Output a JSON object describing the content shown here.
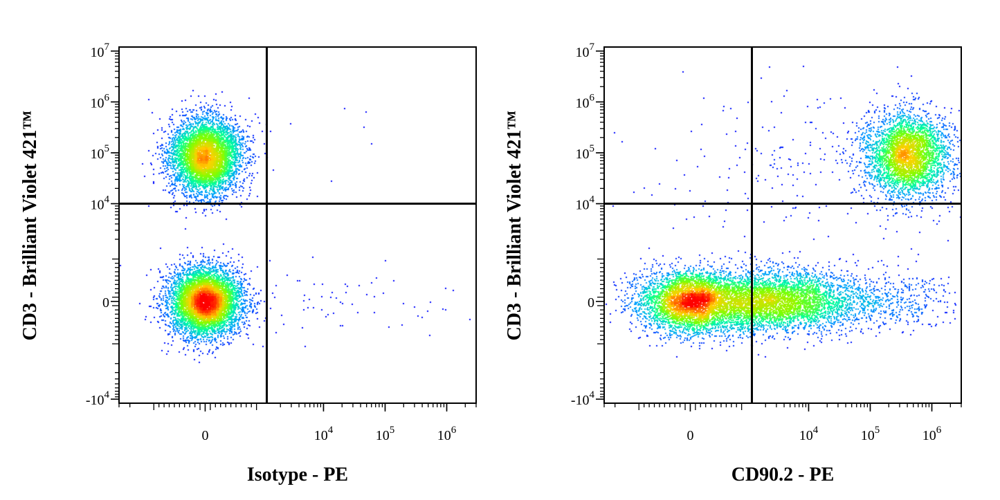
{
  "chart_data": [
    {
      "type": "scatter",
      "subtype": "flow-cytometry-density",
      "xlabel": "Isotype - PE",
      "ylabel": "CD3 - Brilliant Violet 421™",
      "x_scale": "biexponential",
      "y_scale": "biexponential",
      "x_ticks": [
        {
          "value": 0,
          "label": "0"
        },
        {
          "value": 10000,
          "label": "10",
          "sup": "4"
        },
        {
          "value": 100000,
          "label": "10",
          "sup": "5"
        },
        {
          "value": 1000000,
          "label": "10",
          "sup": "6"
        }
      ],
      "y_ticks": [
        {
          "value": -10000,
          "label": "-10",
          "sup": "4"
        },
        {
          "value": 0,
          "label": "0"
        },
        {
          "value": 10000,
          "label": "10",
          "sup": "4"
        },
        {
          "value": 100000,
          "label": "10",
          "sup": "5"
        },
        {
          "value": 1000000,
          "label": "10",
          "sup": "6"
        },
        {
          "value": 10000000,
          "label": "10",
          "sup": "7"
        }
      ],
      "xlim": [
        -3000,
        3000000
      ],
      "ylim": [
        -12000,
        12000000
      ],
      "quadrant_gate": {
        "x": 1200,
        "y": 10000
      },
      "populations": [
        {
          "x": 0,
          "y": 85000,
          "spread_x": 1,
          "spread_y": 1,
          "count": 5200
        },
        {
          "x": 0,
          "y": 0,
          "spread_x": 1,
          "spread_y": 1,
          "count": 6000
        },
        {
          "x": 20000,
          "y": 0,
          "spread_x": 1,
          "spread_y": 1,
          "count": 70
        },
        {
          "x": 20000,
          "y": 90000,
          "spread_x": 1,
          "spread_y": 1,
          "count": 6
        }
      ],
      "density_colors": [
        "#0000ff",
        "#00a0ff",
        "#00ffa0",
        "#80ff00",
        "#ffd000",
        "#ff0000"
      ]
    },
    {
      "type": "scatter",
      "subtype": "flow-cytometry-density",
      "xlabel": "CD90.2 - PE",
      "ylabel": "CD3 - Brilliant Violet 421™",
      "x_scale": "biexponential",
      "y_scale": "biexponential",
      "x_ticks": [
        {
          "value": 0,
          "label": "0"
        },
        {
          "value": 10000,
          "label": "10",
          "sup": "4"
        },
        {
          "value": 100000,
          "label": "10",
          "sup": "5"
        },
        {
          "value": 1000000,
          "label": "10",
          "sup": "6"
        }
      ],
      "y_ticks": [
        {
          "value": -10000,
          "label": "-10",
          "sup": "4"
        },
        {
          "value": 0,
          "label": "0"
        },
        {
          "value": 10000,
          "label": "10",
          "sup": "4"
        },
        {
          "value": 100000,
          "label": "10",
          "sup": "5"
        },
        {
          "value": 1000000,
          "label": "10",
          "sup": "6"
        },
        {
          "value": 10000000,
          "label": "10",
          "sup": "7"
        }
      ],
      "xlim": [
        -3000,
        3000000
      ],
      "ylim": [
        -12000,
        12000000
      ],
      "quadrant_gate": {
        "x": 1200,
        "y": 10000
      },
      "populations": [
        {
          "x": 0,
          "y": 0,
          "spread_x": 1,
          "spread_y": 1,
          "count": 4200
        },
        {
          "x": 2500,
          "y": 0,
          "spread_x": 1,
          "spread_y": 1,
          "count": 3800
        },
        {
          "x": 60000,
          "y": 0,
          "spread_x": 1,
          "spread_y": 1,
          "count": 900
        },
        {
          "x": 400000,
          "y": 90000,
          "spread_x": 1,
          "spread_y": 1,
          "count": 3600
        },
        {
          "x": 20000,
          "y": 60000,
          "spread_x": 1,
          "spread_y": 1,
          "count": 260
        }
      ],
      "density_colors": [
        "#0000ff",
        "#00a0ff",
        "#00ffa0",
        "#80ff00",
        "#ffd000",
        "#ff0000"
      ]
    }
  ]
}
